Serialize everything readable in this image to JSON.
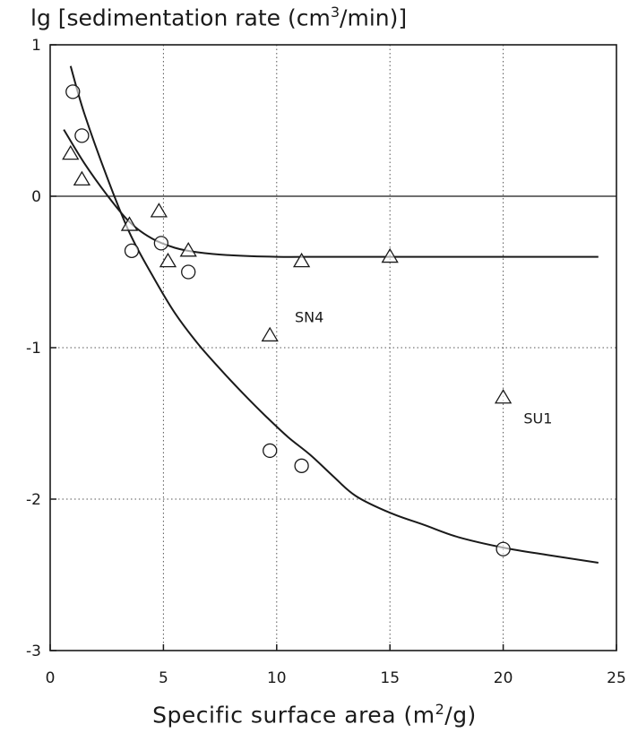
{
  "chart_data": {
    "type": "scatter",
    "title_parts": {
      "prefix": "lg [sedimentation rate (cm",
      "sup": "3",
      "suffix": "/min)]"
    },
    "xlabel_parts": {
      "prefix": "Specific surface area (m",
      "sup": "2",
      "suffix": "/g)"
    },
    "xlim": [
      0,
      25
    ],
    "ylim": [
      -3,
      1
    ],
    "xticks": [
      "0",
      "5",
      "10",
      "15",
      "20",
      "25"
    ],
    "yticks": [
      "1",
      "0",
      "-1",
      "-2",
      "-3"
    ],
    "grid": true,
    "annotations": [
      {
        "text": "SN4",
        "x": 10.8,
        "y": -0.83
      },
      {
        "text": "SU1",
        "x": 20.9,
        "y": -1.5
      }
    ],
    "series": [
      {
        "marker": "circle",
        "points": [
          [
            1.0,
            0.69
          ],
          [
            1.4,
            0.4
          ],
          [
            3.6,
            -0.36
          ],
          [
            4.9,
            -0.31
          ],
          [
            6.1,
            -0.5
          ],
          [
            9.7,
            -1.68
          ],
          [
            11.1,
            -1.78
          ],
          [
            20.0,
            -2.33
          ]
        ],
        "curve": [
          [
            0.9,
            0.86
          ],
          [
            1.5,
            0.55
          ],
          [
            2.5,
            0.13
          ],
          [
            3.5,
            -0.24
          ],
          [
            4.5,
            -0.52
          ],
          [
            5.5,
            -0.77
          ],
          [
            6.5,
            -0.97
          ],
          [
            7.5,
            -1.14
          ],
          [
            8.5,
            -1.3
          ],
          [
            9.5,
            -1.45
          ],
          [
            10.5,
            -1.59
          ],
          [
            11.5,
            -1.71
          ],
          [
            12.5,
            -1.85
          ],
          [
            13.5,
            -1.98
          ],
          [
            15.0,
            -2.09
          ],
          [
            16.5,
            -2.17
          ],
          [
            18.0,
            -2.25
          ],
          [
            20.0,
            -2.32
          ],
          [
            22.0,
            -2.37
          ],
          [
            24.2,
            -2.42
          ]
        ]
      },
      {
        "marker": "triangle",
        "points": [
          [
            0.9,
            0.28
          ],
          [
            1.4,
            0.11
          ],
          [
            3.5,
            -0.19
          ],
          [
            4.8,
            -0.1
          ],
          [
            5.2,
            -0.43
          ],
          [
            6.1,
            -0.36
          ],
          [
            9.7,
            -0.92
          ],
          [
            11.1,
            -0.43
          ],
          [
            15.0,
            -0.4
          ],
          [
            20.0,
            -1.33
          ]
        ],
        "curve": [
          [
            0.6,
            0.44
          ],
          [
            1.5,
            0.22
          ],
          [
            2.5,
            0.01
          ],
          [
            3.5,
            -0.17
          ],
          [
            4.5,
            -0.28
          ],
          [
            5.5,
            -0.34
          ],
          [
            6.5,
            -0.37
          ],
          [
            8.0,
            -0.39
          ],
          [
            10.0,
            -0.4
          ],
          [
            12.0,
            -0.4
          ],
          [
            15.0,
            -0.4
          ],
          [
            20.0,
            -0.4
          ],
          [
            24.2,
            -0.4
          ]
        ]
      }
    ]
  }
}
